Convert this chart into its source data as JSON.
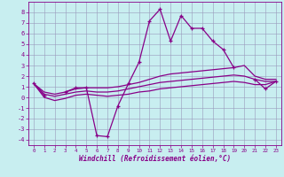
{
  "xlabel": "Windchill (Refroidissement éolien,°C)",
  "background_color": "#c8eef0",
  "grid_color": "#9999bb",
  "line_color": "#880088",
  "x_values": [
    0,
    1,
    2,
    3,
    4,
    5,
    6,
    7,
    8,
    9,
    10,
    11,
    12,
    13,
    14,
    15,
    16,
    17,
    18,
    19,
    20,
    21,
    22,
    23
  ],
  "jagged": [
    1.3,
    0.2,
    null,
    0.5,
    0.9,
    0.9,
    -3.6,
    -3.7,
    -0.8,
    1.3,
    3.3,
    7.2,
    8.3,
    5.3,
    7.7,
    6.5,
    6.5,
    5.3,
    4.5,
    2.8,
    null,
    1.7,
    0.8,
    1.5
  ],
  "smooth_top": [
    1.3,
    0.5,
    0.3,
    0.5,
    0.8,
    0.9,
    0.9,
    0.9,
    1.0,
    1.2,
    1.4,
    1.7,
    2.0,
    2.2,
    2.3,
    2.4,
    2.5,
    2.6,
    2.7,
    2.8,
    3.0,
    2.0,
    1.7,
    1.7
  ],
  "smooth_mid": [
    1.3,
    0.3,
    0.1,
    0.3,
    0.5,
    0.6,
    0.5,
    0.5,
    0.6,
    0.8,
    1.0,
    1.2,
    1.4,
    1.5,
    1.6,
    1.7,
    1.8,
    1.9,
    2.0,
    2.1,
    2.0,
    1.7,
    1.5,
    1.5
  ],
  "smooth_bot": [
    1.3,
    0.0,
    -0.3,
    -0.1,
    0.2,
    0.3,
    0.2,
    0.1,
    0.2,
    0.3,
    0.5,
    0.6,
    0.8,
    0.9,
    1.0,
    1.1,
    1.2,
    1.3,
    1.4,
    1.5,
    1.4,
    1.2,
    1.2,
    1.5
  ],
  "ylim": [
    -4.5,
    9.0
  ],
  "xlim": [
    -0.5,
    23.5
  ],
  "yticks": [
    -4,
    -3,
    -2,
    -1,
    0,
    1,
    2,
    3,
    4,
    5,
    6,
    7,
    8
  ],
  "xticks": [
    0,
    1,
    2,
    3,
    4,
    5,
    6,
    7,
    8,
    9,
    10,
    11,
    12,
    13,
    14,
    15,
    16,
    17,
    18,
    19,
    20,
    21,
    22,
    23
  ]
}
